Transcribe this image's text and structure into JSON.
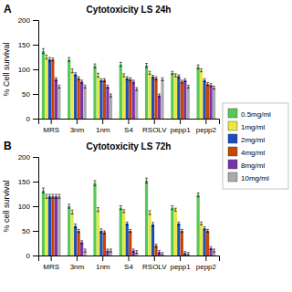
{
  "chart_data": [
    {
      "type": "bar",
      "title": "Cytotoxicity LS 24h",
      "y_label": "% Cell survival",
      "annotations": [
        "A"
      ],
      "categories": [
        "MRS",
        "3nm",
        "1nm",
        "S4",
        "RSOLV",
        "pepp1",
        "pepp2"
      ],
      "series": [
        {
          "name": "0.5mg/ml",
          "color": "#55c855",
          "values": [
            137,
            120,
            107,
            110,
            108,
            93,
            105
          ],
          "errors": [
            5,
            4,
            4,
            4,
            4,
            3,
            4
          ]
        },
        {
          "name": "1mg/ml",
          "color": "#e8e840",
          "values": [
            125,
            97,
            88,
            88,
            93,
            88,
            98
          ],
          "errors": [
            4,
            4,
            4,
            3,
            3,
            3,
            3
          ]
        },
        {
          "name": "2mg/ml",
          "color": "#1a4fbb",
          "values": [
            120,
            90,
            78,
            82,
            85,
            86,
            78
          ],
          "errors": [
            4,
            3,
            3,
            3,
            3,
            3,
            3
          ]
        },
        {
          "name": "4mg/ml",
          "color": "#cc4400",
          "values": [
            120,
            82,
            78,
            80,
            82,
            75,
            70
          ],
          "errors": [
            3,
            3,
            3,
            3,
            3,
            3,
            3
          ]
        },
        {
          "name": "8mg/ml",
          "color": "#7733aa",
          "values": [
            80,
            75,
            65,
            75,
            47,
            78,
            68
          ],
          "errors": [
            3,
            3,
            3,
            3,
            3,
            3,
            3
          ]
        },
        {
          "name": "10mg/ml",
          "color": "#aaaaaa",
          "values": [
            65,
            65,
            47,
            60,
            80,
            65,
            63
          ],
          "errors": [
            3,
            3,
            3,
            3,
            3,
            3,
            3
          ]
        }
      ],
      "ylim": [
        0,
        200
      ],
      "yticks": [
        0,
        50,
        100,
        150,
        200
      ],
      "grid": false,
      "legend": "right"
    },
    {
      "type": "bar",
      "title": "Cytotoxicity LS 72h",
      "y_label": "% cell survival",
      "annotations": [
        "B"
      ],
      "categories": [
        "MRS",
        "3nm",
        "1nm",
        "S4",
        "RSOLV",
        "pepp1",
        "pepp2"
      ],
      "series": [
        {
          "color": "#55c855",
          "values": [
            132,
            100,
            147,
            97,
            152,
            97,
            123
          ],
          "errors": [
            5,
            4,
            5,
            4,
            5,
            4,
            4
          ]
        },
        {
          "color": "#e8e840",
          "values": [
            120,
            88,
            93,
            90,
            87,
            93,
            65
          ],
          "errors": [
            4,
            4,
            4,
            3,
            4,
            3,
            3
          ]
        },
        {
          "color": "#1a4fbb",
          "values": [
            120,
            60,
            50,
            65,
            63,
            65,
            55
          ],
          "errors": [
            4,
            4,
            4,
            3,
            4,
            3,
            3
          ]
        },
        {
          "color": "#cc4400",
          "values": [
            120,
            50,
            47,
            50,
            20,
            50,
            50
          ],
          "errors": [
            4,
            3,
            3,
            3,
            3,
            3,
            3
          ]
        },
        {
          "color": "#7733aa",
          "values": [
            120,
            27,
            10,
            10,
            7,
            5,
            15
          ],
          "errors": [
            4,
            3,
            3,
            3,
            3,
            3,
            3
          ]
        },
        {
          "color": "#aaaaaa",
          "values": [
            120,
            10,
            10,
            7,
            3,
            3,
            10
          ],
          "errors": [
            4,
            3,
            3,
            3,
            3,
            3,
            3
          ]
        }
      ],
      "ylim": [
        0,
        200
      ],
      "yticks": [
        0,
        50,
        100,
        150,
        200
      ],
      "grid": false
    }
  ]
}
